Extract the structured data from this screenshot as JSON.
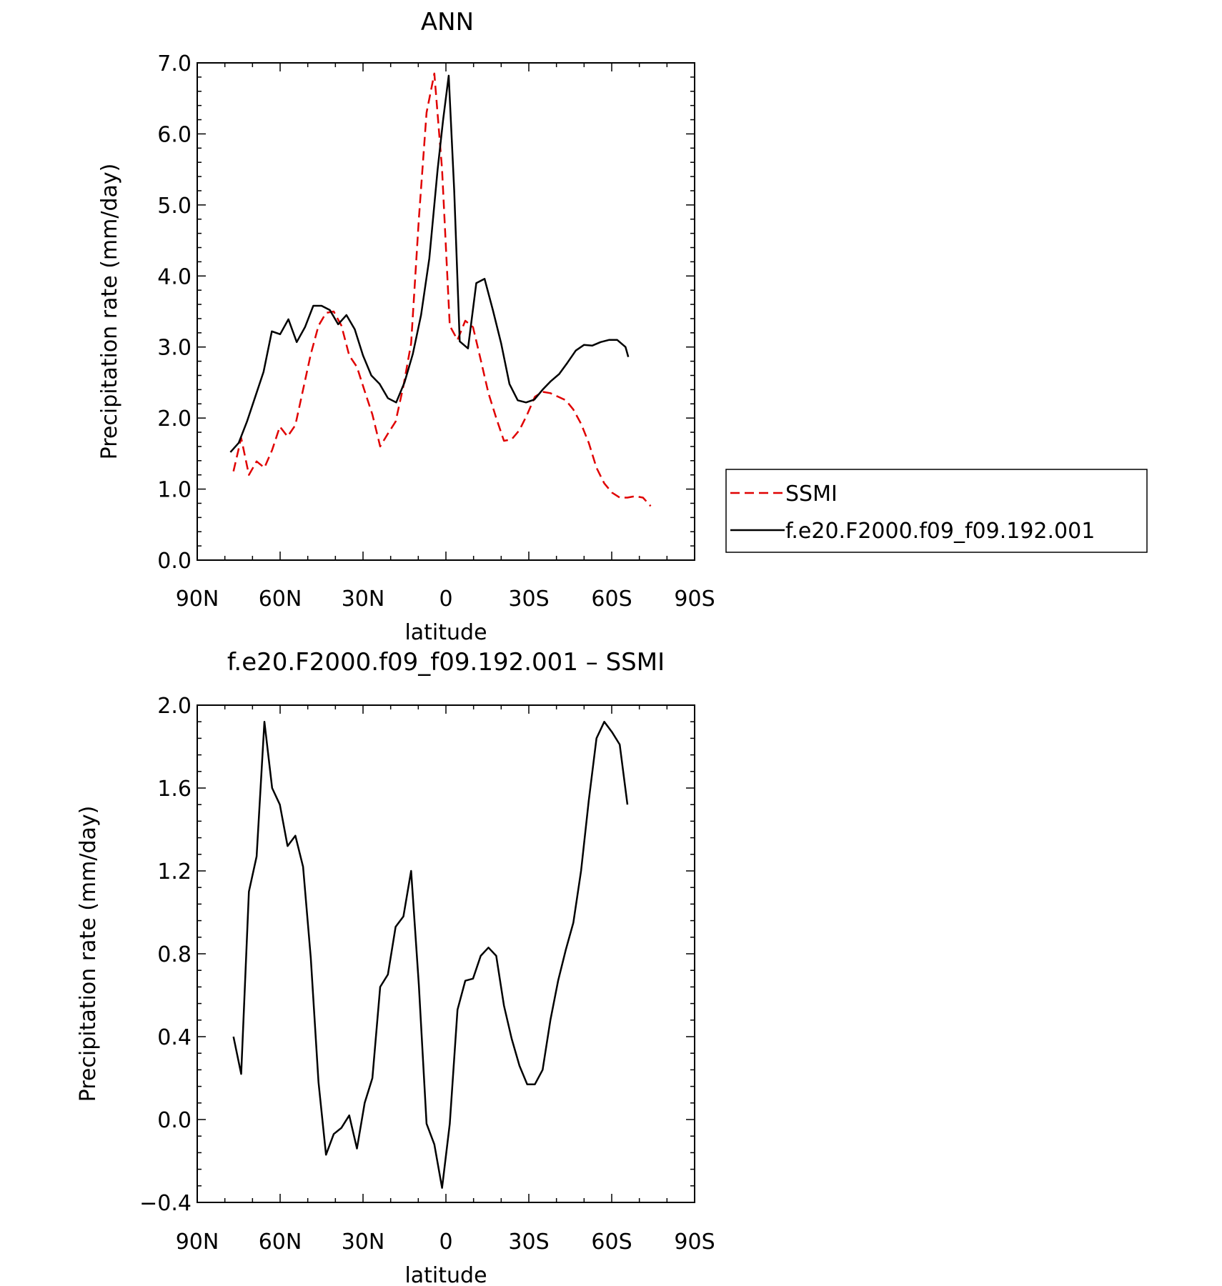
{
  "chart_data": [
    {
      "type": "line",
      "title": "ANN",
      "xlabel": "latitude",
      "ylabel": "Precipitation rate (mm/day)",
      "xlim": [
        90,
        -90
      ],
      "ylim": [
        0.0,
        7.0
      ],
      "x_ticks": [
        90,
        60,
        30,
        0,
        -30,
        -60,
        -90
      ],
      "x_tick_labels": [
        "90N",
        "60N",
        "30N",
        "0",
        "30S",
        "60S",
        "90S"
      ],
      "y_ticks": [
        0,
        1,
        2,
        3,
        4,
        5,
        6,
        7
      ],
      "y_tick_labels": [
        "0.0",
        "1.0",
        "2.0",
        "3.0",
        "4.0",
        "5.0",
        "6.0",
        "7.0"
      ],
      "legend_position": "right",
      "series": [
        {
          "name": "SSMI",
          "color": "#e00000",
          "dash": "dashed",
          "x": [
            76.9,
            74.1,
            71.3,
            68.5,
            65.7,
            62.9,
            60.1,
            57.3,
            54.5,
            51.7,
            48.9,
            46.1,
            43.4,
            40.6,
            37.8,
            35.0,
            32.2,
            29.4,
            26.6,
            23.8,
            21.0,
            18.2,
            15.4,
            12.6,
            9.8,
            7.0,
            4.2,
            1.4,
            -1.4,
            -4.2,
            -7.0,
            -9.8,
            -12.6,
            -15.4,
            -18.2,
            -21.0,
            -23.8,
            -26.6,
            -29.4,
            -32.2,
            -35.0,
            -37.8,
            -40.6,
            -43.4,
            -46.1,
            -48.9,
            -51.7,
            -54.5,
            -57.3,
            -60.1,
            -62.9,
            -65.7,
            -68.5,
            -71.3,
            -74.1
          ],
          "values": [
            1.25,
            1.72,
            1.2,
            1.39,
            1.3,
            1.55,
            1.88,
            1.74,
            1.9,
            2.4,
            2.9,
            3.3,
            3.48,
            3.5,
            3.3,
            2.88,
            2.72,
            2.38,
            2.05,
            1.6,
            1.78,
            1.95,
            2.45,
            3.05,
            4.8,
            6.3,
            6.85,
            5.5,
            3.3,
            3.1,
            3.37,
            3.28,
            2.82,
            2.35,
            2.0,
            1.68,
            1.7,
            1.83,
            2.05,
            2.3,
            2.37,
            2.35,
            2.3,
            2.25,
            2.12,
            1.92,
            1.65,
            1.3,
            1.08,
            0.95,
            0.88,
            0.88,
            0.9,
            0.88,
            0.76
          ]
        },
        {
          "name": "f.e20.F2000.f09_f09.192.001",
          "color": "#000000",
          "dash": "solid",
          "x": [
            78.0,
            75.0,
            72.0,
            69.0,
            66.0,
            63.0,
            60.0,
            57.0,
            54.0,
            51.0,
            48.0,
            45.0,
            42.0,
            39.0,
            36.0,
            33.0,
            30.0,
            27.0,
            24.0,
            21.0,
            18.0,
            15.0,
            12.0,
            9.0,
            6.0,
            3.0,
            1.0,
            -1.0,
            -3.0,
            -5.0,
            -8.0,
            -11.0,
            -14.0,
            -17.0,
            -20.0,
            -23.0,
            -26.0,
            -29.0,
            -32.0,
            -35.0,
            -38.0,
            -41.0,
            -44.0,
            -47.0,
            -50.0,
            -53.0,
            -56.0,
            -59.0,
            -62.0,
            -65.0,
            -66.0
          ],
          "values": [
            1.52,
            1.65,
            1.95,
            2.3,
            2.65,
            3.22,
            3.18,
            3.39,
            3.07,
            3.28,
            3.58,
            3.58,
            3.52,
            3.32,
            3.45,
            3.25,
            2.88,
            2.6,
            2.48,
            2.28,
            2.22,
            2.5,
            2.9,
            3.45,
            4.25,
            5.5,
            6.2,
            6.82,
            5.2,
            3.08,
            2.98,
            3.9,
            3.96,
            3.52,
            3.05,
            2.48,
            2.25,
            2.22,
            2.26,
            2.4,
            2.52,
            2.62,
            2.78,
            2.95,
            3.03,
            3.02,
            3.07,
            3.1,
            3.1,
            3.0,
            2.86
          ]
        }
      ]
    },
    {
      "type": "line",
      "title": "f.e20.F2000.f09_f09.192.001 – SSMI",
      "xlabel": "latitude",
      "ylabel": "Precipitation rate (mm/day)",
      "xlim": [
        90,
        -90
      ],
      "ylim": [
        -0.4,
        2.0
      ],
      "x_ticks": [
        90,
        60,
        30,
        0,
        -30,
        -60,
        -90
      ],
      "x_tick_labels": [
        "90N",
        "60N",
        "30N",
        "0",
        "30S",
        "60S",
        "90S"
      ],
      "y_ticks": [
        -0.4,
        0.0,
        0.4,
        0.8,
        1.2,
        1.6,
        2.0
      ],
      "y_tick_labels": [
        "−0.4",
        "0.0",
        "0.4",
        "0.8",
        "1.2",
        "1.6",
        "2.0"
      ],
      "series": [
        {
          "color": "#000000",
          "dash": "solid",
          "x": [
            76.9,
            74.1,
            71.3,
            68.5,
            65.7,
            62.9,
            60.1,
            57.3,
            54.5,
            51.7,
            48.9,
            46.1,
            43.4,
            40.6,
            37.8,
            35.0,
            32.2,
            29.4,
            26.6,
            23.8,
            21.0,
            18.2,
            15.4,
            12.6,
            9.8,
            7.0,
            4.2,
            1.4,
            -1.4,
            -4.2,
            -7.0,
            -9.8,
            -12.6,
            -15.4,
            -18.2,
            -21.0,
            -23.8,
            -26.6,
            -29.4,
            -32.2,
            -35.0,
            -37.8,
            -40.6,
            -43.4,
            -46.1,
            -48.9,
            -51.7,
            -54.5,
            -57.3,
            -60.1,
            -62.9,
            -65.7
          ],
          "values": [
            0.4,
            0.22,
            1.1,
            1.27,
            1.92,
            1.6,
            1.52,
            1.32,
            1.37,
            1.22,
            0.78,
            0.18,
            -0.17,
            -0.07,
            -0.04,
            0.02,
            -0.14,
            0.08,
            0.2,
            0.64,
            0.7,
            0.93,
            0.98,
            1.2,
            0.65,
            -0.02,
            -0.12,
            -0.33,
            -0.02,
            0.53,
            0.67,
            0.68,
            0.79,
            0.83,
            0.79,
            0.55,
            0.39,
            0.26,
            0.17,
            0.17,
            0.24,
            0.48,
            0.67,
            0.82,
            0.95,
            1.2,
            1.54,
            1.84,
            1.92,
            1.87,
            1.81,
            1.52
          ]
        }
      ]
    }
  ]
}
